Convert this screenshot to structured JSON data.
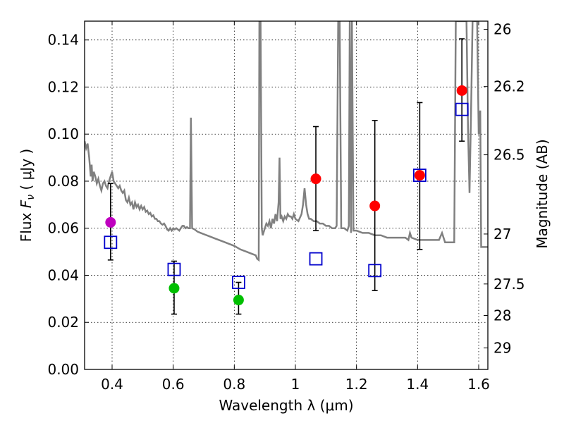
{
  "chart_data": {
    "type": "scatter",
    "xlabel": "Wavelength  λ (μm)",
    "ylabel_prefix": "Flux  ",
    "ylabel_symbol": "F",
    "ylabel_sub": "ν",
    "ylabel_suffix": "  ( μJy )",
    "ylabel_right": "Magnitude (AB)",
    "xlim": [
      0.31,
      1.63
    ],
    "ylim": [
      0.0,
      0.148
    ],
    "grid": true,
    "xticks": [
      {
        "value": 0.4,
        "label": "0.4"
      },
      {
        "value": 0.6,
        "label": "0.6"
      },
      {
        "value": 0.8,
        "label": "0.8"
      },
      {
        "value": 1.0,
        "label": "1"
      },
      {
        "value": 1.2,
        "label": "1.2"
      },
      {
        "value": 1.4,
        "label": "1.4"
      },
      {
        "value": 1.6,
        "label": "1.6"
      }
    ],
    "yticks": [
      {
        "value": 0.0,
        "label": "0.00"
      },
      {
        "value": 0.02,
        "label": "0.02"
      },
      {
        "value": 0.04,
        "label": "0.04"
      },
      {
        "value": 0.06,
        "label": "0.06"
      },
      {
        "value": 0.08,
        "label": "0.08"
      },
      {
        "value": 0.1,
        "label": "0.10"
      },
      {
        "value": 0.12,
        "label": "0.12"
      },
      {
        "value": 0.14,
        "label": "0.14"
      }
    ],
    "right_ticks": [
      {
        "label": "26",
        "mag": 26.0
      },
      {
        "label": "26.2",
        "mag": 26.2
      },
      {
        "label": "26.5",
        "mag": 26.5
      },
      {
        "label": "27",
        "mag": 27.0
      },
      {
        "label": "27.5",
        "mag": 27.5
      },
      {
        "label": "28",
        "mag": 28.0
      },
      {
        "label": "29",
        "mag": 29.0
      }
    ],
    "observed_points": [
      {
        "x": 0.395,
        "y": 0.0625,
        "err_lo": 0.0465,
        "err_hi": 0.079,
        "color": "#bf00bf"
      },
      {
        "x": 0.603,
        "y": 0.0345,
        "err_lo": 0.0235,
        "err_hi": 0.046,
        "color": "#00bf00"
      },
      {
        "x": 0.814,
        "y": 0.0295,
        "err_lo": 0.0235,
        "err_hi": 0.037,
        "color": "#00bf00"
      },
      {
        "x": 1.067,
        "y": 0.081,
        "err_lo": 0.059,
        "err_hi": 0.1032,
        "color": "#ff0000"
      },
      {
        "x": 1.26,
        "y": 0.0695,
        "err_lo": 0.0335,
        "err_hi": 0.1058,
        "color": "#ff0000"
      },
      {
        "x": 1.407,
        "y": 0.0825,
        "err_lo": 0.051,
        "err_hi": 0.1134,
        "color": "#ff0000"
      },
      {
        "x": 1.545,
        "y": 0.1185,
        "err_lo": 0.097,
        "err_hi": 0.1405,
        "color": "#ff0000"
      }
    ],
    "model_points": [
      {
        "x": 0.395,
        "y": 0.054
      },
      {
        "x": 0.603,
        "y": 0.0425
      },
      {
        "x": 0.814,
        "y": 0.037
      },
      {
        "x": 1.067,
        "y": 0.047
      },
      {
        "x": 1.26,
        "y": 0.042
      },
      {
        "x": 1.407,
        "y": 0.0825
      },
      {
        "x": 1.545,
        "y": 0.1105
      }
    ],
    "model_color": "#0000cc",
    "sed_color": "#808080",
    "sed_line": [
      [
        0.31,
        0.097
      ],
      [
        0.315,
        0.094
      ],
      [
        0.32,
        0.096
      ],
      [
        0.325,
        0.09
      ],
      [
        0.33,
        0.082
      ],
      [
        0.333,
        0.087
      ],
      [
        0.336,
        0.08
      ],
      [
        0.34,
        0.084
      ],
      [
        0.345,
        0.082
      ],
      [
        0.35,
        0.079
      ],
      [
        0.355,
        0.081
      ],
      [
        0.36,
        0.078
      ],
      [
        0.365,
        0.076
      ],
      [
        0.37,
        0.079
      ],
      [
        0.375,
        0.08
      ],
      [
        0.38,
        0.078
      ],
      [
        0.385,
        0.077
      ],
      [
        0.39,
        0.08
      ],
      [
        0.395,
        0.082
      ],
      [
        0.4,
        0.084
      ],
      [
        0.405,
        0.08
      ],
      [
        0.41,
        0.079
      ],
      [
        0.415,
        0.078
      ],
      [
        0.42,
        0.077
      ],
      [
        0.425,
        0.078
      ],
      [
        0.43,
        0.076
      ],
      [
        0.435,
        0.075
      ],
      [
        0.44,
        0.076
      ],
      [
        0.445,
        0.072
      ],
      [
        0.45,
        0.071
      ],
      [
        0.455,
        0.073
      ],
      [
        0.46,
        0.07
      ],
      [
        0.465,
        0.071
      ],
      [
        0.47,
        0.068
      ],
      [
        0.475,
        0.071
      ],
      [
        0.48,
        0.069
      ],
      [
        0.485,
        0.07
      ],
      [
        0.49,
        0.068
      ],
      [
        0.495,
        0.0695
      ],
      [
        0.5,
        0.068
      ],
      [
        0.505,
        0.069
      ],
      [
        0.51,
        0.067
      ],
      [
        0.515,
        0.0675
      ],
      [
        0.52,
        0.066
      ],
      [
        0.525,
        0.0665
      ],
      [
        0.53,
        0.065
      ],
      [
        0.535,
        0.0655
      ],
      [
        0.54,
        0.064
      ],
      [
        0.545,
        0.064
      ],
      [
        0.55,
        0.063
      ],
      [
        0.555,
        0.063
      ],
      [
        0.56,
        0.062
      ],
      [
        0.565,
        0.0615
      ],
      [
        0.57,
        0.062
      ],
      [
        0.575,
        0.061
      ],
      [
        0.58,
        0.0595
      ],
      [
        0.585,
        0.059
      ],
      [
        0.59,
        0.06
      ],
      [
        0.595,
        0.059
      ],
      [
        0.6,
        0.06
      ],
      [
        0.605,
        0.0595
      ],
      [
        0.61,
        0.06
      ],
      [
        0.615,
        0.0595
      ],
      [
        0.62,
        0.059
      ],
      [
        0.625,
        0.06
      ],
      [
        0.63,
        0.061
      ],
      [
        0.635,
        0.061
      ],
      [
        0.64,
        0.06
      ],
      [
        0.645,
        0.0605
      ],
      [
        0.65,
        0.06
      ],
      [
        0.655,
        0.06
      ],
      [
        0.658,
        0.107
      ],
      [
        0.662,
        0.06
      ],
      [
        0.67,
        0.0595
      ],
      [
        0.68,
        0.0585
      ],
      [
        0.69,
        0.058
      ],
      [
        0.7,
        0.0575
      ],
      [
        0.72,
        0.0565
      ],
      [
        0.74,
        0.0555
      ],
      [
        0.76,
        0.0545
      ],
      [
        0.78,
        0.0535
      ],
      [
        0.8,
        0.0525
      ],
      [
        0.82,
        0.051
      ],
      [
        0.84,
        0.05
      ],
      [
        0.86,
        0.049
      ],
      [
        0.87,
        0.0485
      ],
      [
        0.875,
        0.047
      ],
      [
        0.88,
        0.0465
      ],
      [
        0.882,
        0.148
      ],
      [
        0.886,
        0.148
      ],
      [
        0.89,
        0.06
      ],
      [
        0.893,
        0.057
      ],
      [
        0.9,
        0.06
      ],
      [
        0.905,
        0.062
      ],
      [
        0.91,
        0.061
      ],
      [
        0.915,
        0.063
      ],
      [
        0.92,
        0.06
      ],
      [
        0.925,
        0.064
      ],
      [
        0.93,
        0.062
      ],
      [
        0.935,
        0.066
      ],
      [
        0.94,
        0.063
      ],
      [
        0.945,
        0.071
      ],
      [
        0.948,
        0.09
      ],
      [
        0.951,
        0.064
      ],
      [
        0.955,
        0.065
      ],
      [
        0.96,
        0.063
      ],
      [
        0.965,
        0.065
      ],
      [
        0.97,
        0.064
      ],
      [
        0.975,
        0.066
      ],
      [
        0.98,
        0.065
      ],
      [
        0.985,
        0.065
      ],
      [
        0.99,
        0.064
      ],
      [
        0.995,
        0.066
      ],
      [
        1.0,
        0.064
      ],
      [
        1.01,
        0.063
      ],
      [
        1.02,
        0.066
      ],
      [
        1.025,
        0.07
      ],
      [
        1.03,
        0.077
      ],
      [
        1.035,
        0.07
      ],
      [
        1.04,
        0.066
      ],
      [
        1.045,
        0.064
      ],
      [
        1.05,
        0.064
      ],
      [
        1.06,
        0.063
      ],
      [
        1.07,
        0.063
      ],
      [
        1.08,
        0.062
      ],
      [
        1.09,
        0.062
      ],
      [
        1.1,
        0.061
      ],
      [
        1.11,
        0.061
      ],
      [
        1.12,
        0.06
      ],
      [
        1.13,
        0.06
      ],
      [
        1.135,
        0.061
      ],
      [
        1.14,
        0.148
      ],
      [
        1.145,
        0.148
      ],
      [
        1.15,
        0.06
      ],
      [
        1.16,
        0.06
      ],
      [
        1.17,
        0.059
      ],
      [
        1.175,
        0.061
      ],
      [
        1.178,
        0.148
      ],
      [
        1.182,
        0.058
      ],
      [
        1.185,
        0.148
      ],
      [
        1.19,
        0.059
      ],
      [
        1.2,
        0.059
      ],
      [
        1.22,
        0.058
      ],
      [
        1.24,
        0.058
      ],
      [
        1.26,
        0.057
      ],
      [
        1.28,
        0.057
      ],
      [
        1.3,
        0.056
      ],
      [
        1.32,
        0.056
      ],
      [
        1.34,
        0.056
      ],
      [
        1.36,
        0.056
      ],
      [
        1.37,
        0.055
      ],
      [
        1.375,
        0.058
      ],
      [
        1.38,
        0.056
      ],
      [
        1.4,
        0.055
      ],
      [
        1.42,
        0.055
      ],
      [
        1.44,
        0.055
      ],
      [
        1.46,
        0.055
      ],
      [
        1.47,
        0.055
      ],
      [
        1.48,
        0.058
      ],
      [
        1.49,
        0.054
      ],
      [
        1.5,
        0.054
      ],
      [
        1.51,
        0.054
      ],
      [
        1.52,
        0.054
      ],
      [
        1.525,
        0.148
      ],
      [
        1.56,
        0.148
      ],
      [
        1.565,
        0.103
      ],
      [
        1.57,
        0.075
      ],
      [
        1.575,
        0.11
      ],
      [
        1.58,
        0.148
      ],
      [
        1.595,
        0.148
      ],
      [
        1.6,
        0.1
      ],
      [
        1.605,
        0.11
      ],
      [
        1.608,
        0.052
      ],
      [
        1.63,
        0.052
      ]
    ]
  }
}
